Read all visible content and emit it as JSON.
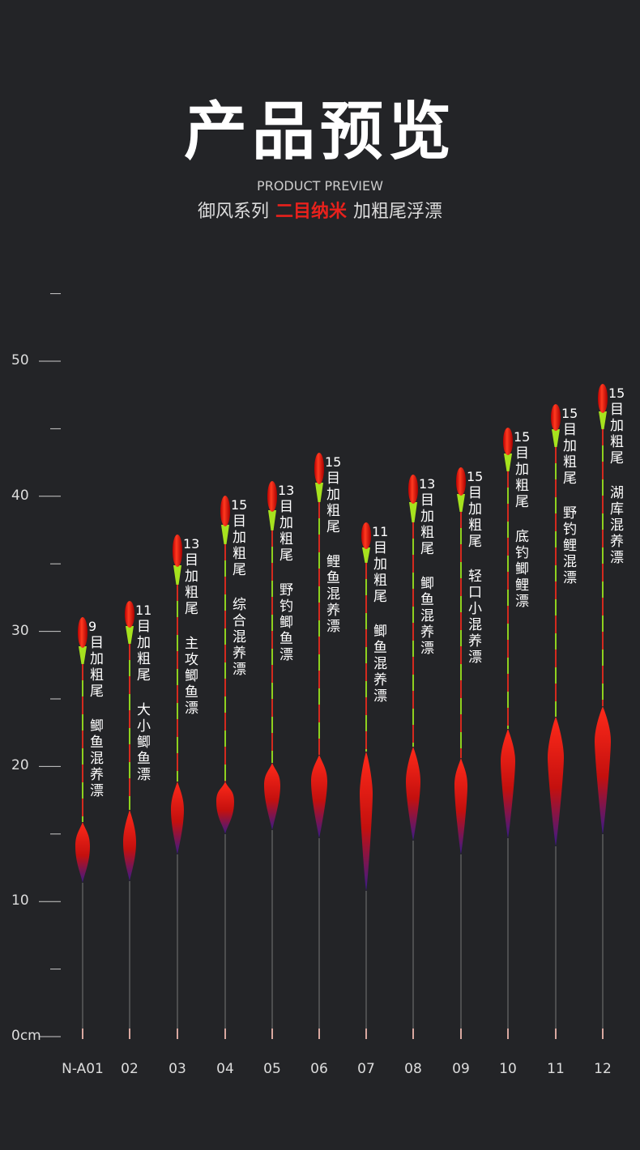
{
  "header": {
    "title": "产品预览",
    "subtitle_en": "PRODUCT PREVIEW",
    "series_prefix": "御风系列",
    "series_highlight": "二目纳米",
    "series_suffix": "加粗尾浮漂"
  },
  "ruler": {
    "labels": [
      "50",
      "40",
      "30",
      "20",
      "10",
      "0cm"
    ]
  },
  "floats": [
    {
      "model": "N-A01",
      "mesh": "9",
      "tail": "目加粗尾",
      "use": "鲫鱼混养漂"
    },
    {
      "model": "02",
      "mesh": "11",
      "tail": "目加粗尾",
      "use": "大小鲫鱼漂"
    },
    {
      "model": "03",
      "mesh": "13",
      "tail": "目加粗尾",
      "use": "主攻鲫鱼漂"
    },
    {
      "model": "04",
      "mesh": "15",
      "tail": "目加粗尾",
      "use": "综合混养漂"
    },
    {
      "model": "05",
      "mesh": "13",
      "tail": "目加粗尾",
      "use": "野钓鲫鱼漂"
    },
    {
      "model": "06",
      "mesh": "15",
      "tail": "目加粗尾",
      "use": "鲤鱼混养漂"
    },
    {
      "model": "07",
      "mesh": "11",
      "tail": "目加粗尾",
      "use": "鲫鱼混养漂"
    },
    {
      "model": "08",
      "mesh": "13",
      "tail": "目加粗尾",
      "use": "鲫鱼混养漂"
    },
    {
      "model": "09",
      "mesh": "15",
      "tail": "目加粗尾",
      "use": "轻口小混养漂"
    },
    {
      "model": "10",
      "mesh": "15",
      "tail": "目加粗尾",
      "use": "底钓鲫鲤漂"
    },
    {
      "model": "11",
      "mesh": "15",
      "tail": "目加粗尾",
      "use": "野钓鲤混漂"
    },
    {
      "model": "12",
      "mesh": "15",
      "tail": "目加粗尾",
      "use": "湖库混养漂"
    }
  ]
}
